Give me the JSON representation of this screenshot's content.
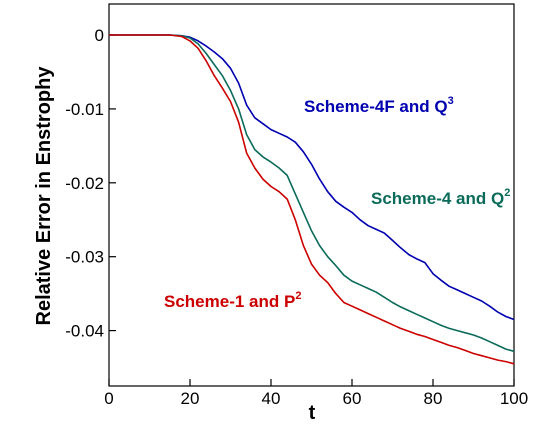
{
  "chart_data": {
    "type": "line",
    "title": "",
    "xlabel": "t",
    "ylabel": "Relative Error in Enstrophy",
    "xlim": [
      0,
      100
    ],
    "ylim": [
      -0.0475,
      0.0042
    ],
    "xticks": [
      0,
      20,
      40,
      60,
      80,
      100
    ],
    "xtick_labels": [
      "0",
      "20",
      "40",
      "60",
      "80",
      "100"
    ],
    "yticks": [
      0,
      -0.01,
      -0.02,
      -0.03,
      -0.04
    ],
    "ytick_labels": [
      "0",
      "-0.01",
      "-0.02",
      "-0.03",
      "-0.04"
    ],
    "grid": false,
    "legend": "none",
    "series": [
      {
        "color": "#0000b0",
        "label": "Scheme-4F and Q",
        "label_sup": "3",
        "x": [
          0,
          10,
          15,
          18,
          20,
          22,
          24,
          26,
          28,
          30,
          32,
          34,
          36,
          38,
          40,
          42,
          44,
          46,
          48,
          50,
          52,
          54,
          56,
          58,
          60,
          62,
          64,
          66,
          68,
          70,
          72,
          74,
          76,
          78,
          80,
          82,
          84,
          86,
          88,
          90,
          92,
          94,
          96,
          98,
          100
        ],
        "y": [
          0,
          0,
          0,
          -0.0001,
          -0.0003,
          -0.0008,
          -0.0015,
          -0.0023,
          -0.0032,
          -0.0045,
          -0.0065,
          -0.0095,
          -0.0112,
          -0.012,
          -0.0128,
          -0.0133,
          -0.0138,
          -0.0145,
          -0.0158,
          -0.0175,
          -0.0195,
          -0.0212,
          -0.0225,
          -0.0233,
          -0.024,
          -0.025,
          -0.0258,
          -0.0263,
          -0.0268,
          -0.0278,
          -0.0288,
          -0.0297,
          -0.0303,
          -0.0308,
          -0.0323,
          -0.0332,
          -0.034,
          -0.0345,
          -0.035,
          -0.0355,
          -0.036,
          -0.0367,
          -0.0375,
          -0.0381,
          -0.0385
        ]
      },
      {
        "color": "#0b6b5a",
        "label": "Scheme-4 and Q",
        "label_sup": "2",
        "x": [
          0,
          10,
          15,
          18,
          20,
          22,
          24,
          26,
          28,
          30,
          32,
          34,
          36,
          38,
          40,
          42,
          44,
          46,
          48,
          50,
          52,
          54,
          56,
          58,
          60,
          62,
          64,
          66,
          68,
          70,
          72,
          74,
          76,
          78,
          80,
          82,
          84,
          86,
          88,
          90,
          92,
          94,
          96,
          98,
          100
        ],
        "y": [
          0,
          0,
          0,
          -0.0001,
          -0.0004,
          -0.0012,
          -0.0025,
          -0.004,
          -0.0055,
          -0.0075,
          -0.01,
          -0.0135,
          -0.0155,
          -0.0165,
          -0.0172,
          -0.018,
          -0.019,
          -0.0215,
          -0.024,
          -0.0265,
          -0.0285,
          -0.03,
          -0.0312,
          -0.0325,
          -0.0333,
          -0.0338,
          -0.0343,
          -0.0348,
          -0.0355,
          -0.0362,
          -0.0368,
          -0.0373,
          -0.0378,
          -0.0383,
          -0.0388,
          -0.0393,
          -0.0397,
          -0.04,
          -0.0403,
          -0.0406,
          -0.041,
          -0.0415,
          -0.042,
          -0.0425,
          -0.0428
        ]
      },
      {
        "color": "#cc0000",
        "label": "Scheme-1 and P",
        "label_sup": "2",
        "x": [
          0,
          10,
          15,
          18,
          20,
          22,
          24,
          26,
          28,
          30,
          32,
          34,
          36,
          38,
          40,
          42,
          44,
          46,
          48,
          50,
          52,
          54,
          56,
          58,
          60,
          62,
          64,
          66,
          68,
          70,
          72,
          74,
          76,
          78,
          80,
          82,
          84,
          86,
          88,
          90,
          92,
          94,
          96,
          98,
          100
        ],
        "y": [
          0,
          0,
          0,
          -0.0002,
          -0.0008,
          -0.0018,
          -0.0035,
          -0.0055,
          -0.0072,
          -0.009,
          -0.0118,
          -0.016,
          -0.018,
          -0.0195,
          -0.0205,
          -0.0212,
          -0.0222,
          -0.025,
          -0.0285,
          -0.031,
          -0.0325,
          -0.0335,
          -0.035,
          -0.0362,
          -0.0367,
          -0.0372,
          -0.0377,
          -0.0382,
          -0.0387,
          -0.0392,
          -0.0397,
          -0.0401,
          -0.0405,
          -0.0408,
          -0.0412,
          -0.0416,
          -0.042,
          -0.0423,
          -0.0427,
          -0.0431,
          -0.0434,
          -0.0437,
          -0.044,
          -0.0442,
          -0.0445
        ]
      }
    ]
  }
}
